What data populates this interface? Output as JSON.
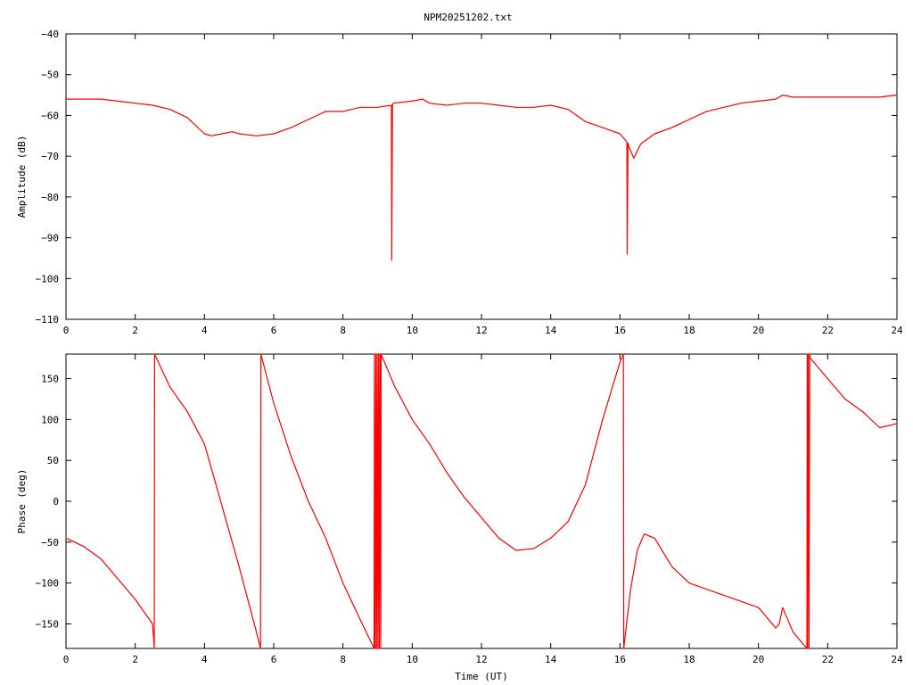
{
  "chart_data": [
    {
      "type": "line",
      "title": "NPM20251202.txt",
      "xlabel": "",
      "ylabel": "Amplitude (dB)",
      "xlim": [
        0,
        24
      ],
      "ylim": [
        -110,
        -40
      ],
      "xticks": [
        0,
        2,
        4,
        6,
        8,
        10,
        12,
        14,
        16,
        18,
        20,
        22,
        24
      ],
      "yticks": [
        -110,
        -100,
        -90,
        -80,
        -70,
        -60,
        -50,
        -40
      ],
      "grid": false,
      "color": "#ff0000",
      "series": [
        {
          "x": [
            0,
            0.5,
            1,
            1.5,
            2,
            2.5,
            3,
            3.5,
            4,
            4.2,
            4.5,
            4.8,
            5,
            5.5,
            6,
            6.5,
            7,
            7.5,
            8,
            8.5,
            9,
            9.4,
            9.41,
            9.43,
            9.45,
            10,
            10.3,
            10.5,
            11,
            11.5,
            12,
            12.5,
            13,
            13.5,
            14,
            14.5,
            15,
            15.5,
            16,
            16.2,
            16.21,
            16.23,
            16.25,
            16.4,
            16.6,
            17,
            17.5,
            18,
            18.5,
            19,
            19.5,
            20,
            20.5,
            20.7,
            21,
            21.5,
            22,
            22.5,
            23,
            23.5,
            24
          ],
          "y": [
            -56,
            -56,
            -56,
            -56.5,
            -57,
            -57.5,
            -58.5,
            -60.5,
            -64.5,
            -65,
            -64.5,
            -64,
            -64.5,
            -65,
            -64.5,
            -63,
            -61,
            -59,
            -59,
            -58,
            -58,
            -57.5,
            -95.5,
            -57.5,
            -57,
            -56.5,
            -56,
            -57,
            -57.5,
            -57,
            -57,
            -57.5,
            -58,
            -58,
            -57.5,
            -58.5,
            -61.5,
            -63,
            -64.5,
            -66.5,
            -94,
            -66.8,
            -67.5,
            -70.5,
            -67,
            -64.5,
            -63,
            -61,
            -59,
            -58,
            -57,
            -56.5,
            -56,
            -55,
            -55.5,
            -55.5,
            -55.5,
            -55.5,
            -55.5,
            -55.5,
            -55
          ]
        }
      ]
    },
    {
      "type": "line",
      "title": "",
      "xlabel": "Time (UT)",
      "ylabel": "Phase (deg)",
      "xlim": [
        0,
        24
      ],
      "ylim": [
        -180,
        180
      ],
      "xticks": [
        0,
        2,
        4,
        6,
        8,
        10,
        12,
        14,
        16,
        18,
        20,
        22,
        24
      ],
      "yticks": [
        -150,
        -100,
        -50,
        0,
        50,
        100,
        150
      ],
      "grid": false,
      "color": "#ff0000",
      "series": [
        {
          "x": [
            0,
            0.5,
            1,
            1.5,
            2,
            2.5,
            2.55,
            2.56,
            3,
            3.5,
            4,
            4.5,
            5,
            5.5,
            5.62,
            5.63,
            6,
            6.5,
            7,
            7.5,
            8,
            8.5,
            8.9,
            8.91,
            8.93,
            8.95,
            8.97,
            8.99,
            9.01,
            9.03,
            9.05,
            9.07,
            9.09,
            9.1,
            9.5,
            10,
            10.5,
            11,
            11.5,
            12,
            12.5,
            13,
            13.5,
            14,
            14.5,
            15,
            15.5,
            16,
            16.1,
            16.11,
            16.3,
            16.5,
            16.7,
            17,
            17.5,
            18,
            19,
            20,
            20.5,
            20.6,
            20.7,
            21,
            21.4,
            21.41,
            21.42,
            21.44,
            21.46,
            21.48,
            21.5,
            22,
            22.5,
            23,
            23.5,
            24
          ],
          "y": [
            -45,
            -55,
            -70,
            -95,
            -120,
            -150,
            -180,
            180,
            140,
            110,
            70,
            -5,
            -80,
            -160,
            -180,
            180,
            120,
            55,
            0,
            -45,
            -100,
            -145,
            -180,
            180,
            -180,
            180,
            -180,
            180,
            -180,
            180,
            -180,
            180,
            -180,
            180,
            140,
            100,
            70,
            35,
            5,
            -20,
            -45,
            -60,
            -58,
            -45,
            -25,
            20,
            100,
            170,
            180,
            -180,
            -110,
            -60,
            -40,
            -45,
            -80,
            -100,
            -115,
            -130,
            -155,
            -150,
            -130,
            -160,
            -180,
            180,
            -180,
            180,
            -180,
            180,
            175,
            150,
            125,
            110,
            90,
            95
          ]
        }
      ]
    }
  ]
}
